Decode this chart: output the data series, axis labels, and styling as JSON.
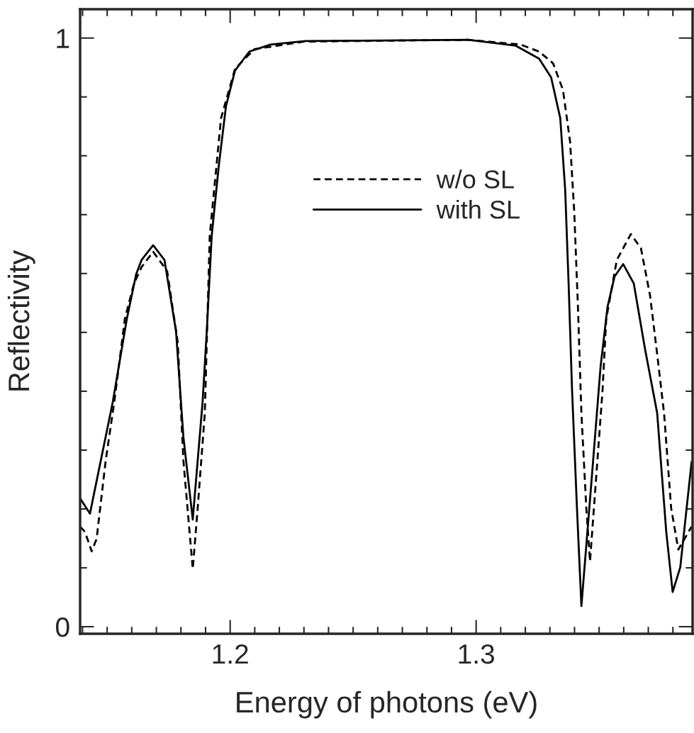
{
  "chart_data": {
    "type": "line",
    "xlabel": "Energy of photons (eV)",
    "ylabel": "Reflectivity",
    "xlim": [
      1.139,
      1.388
    ],
    "ylim": [
      -0.012,
      1.049
    ],
    "xticks": [
      {
        "value": 1.14,
        "label": null
      },
      {
        "value": 1.15,
        "label": null
      },
      {
        "value": 1.16,
        "label": null
      },
      {
        "value": 1.17,
        "label": null
      },
      {
        "value": 1.18,
        "label": null
      },
      {
        "value": 1.19,
        "label": null
      },
      1.2,
      {
        "value": 1.21,
        "label": null
      },
      {
        "value": 1.22,
        "label": null
      },
      {
        "value": 1.23,
        "label": null
      },
      {
        "value": 1.24,
        "label": null
      },
      {
        "value": 1.25,
        "label": null
      },
      {
        "value": 1.26,
        "label": null
      },
      {
        "value": 1.27,
        "label": null
      },
      {
        "value": 1.28,
        "label": null
      },
      {
        "value": 1.29,
        "label": null
      },
      1.3,
      {
        "value": 1.31,
        "label": null
      },
      {
        "value": 1.32,
        "label": null
      },
      {
        "value": 1.33,
        "label": null
      },
      {
        "value": 1.34,
        "label": null
      },
      {
        "value": 1.35,
        "label": null
      },
      {
        "value": 1.36,
        "label": null
      },
      {
        "value": 1.37,
        "label": null
      },
      {
        "value": 1.38,
        "label": null
      }
    ],
    "yticks": [
      0,
      {
        "value": 0.1,
        "label": null
      },
      {
        "value": 0.2,
        "label": null
      },
      {
        "value": 0.3,
        "label": null
      },
      {
        "value": 0.4,
        "label": null
      },
      {
        "value": 0.5,
        "label": null
      },
      {
        "value": 0.6,
        "label": null
      },
      {
        "value": 0.7,
        "label": null
      },
      {
        "value": 0.8,
        "label": null
      },
      {
        "value": 0.9,
        "label": null
      },
      1
    ],
    "grid": false,
    "legend": "top",
    "marker": "none",
    "series": [
      {
        "name": "w/o SL",
        "color": "#000000",
        "line_style": "dashed",
        "x": [
          1.139,
          1.141,
          1.1437,
          1.1457,
          1.1494,
          1.1529,
          1.1572,
          1.1609,
          1.164,
          1.1687,
          1.1744,
          1.1787,
          1.181,
          1.1848,
          1.1868,
          1.1897,
          1.1917,
          1.1963,
          1.202,
          1.2098,
          1.23,
          1.2968,
          1.3181,
          1.3256,
          1.3313,
          1.3353,
          1.3382,
          1.3399,
          1.3414,
          1.3428,
          1.3448,
          1.3463,
          1.3486,
          1.3514,
          1.3529,
          1.3572,
          1.3629,
          1.367,
          1.3707,
          1.3736,
          1.3764,
          1.3793,
          1.3822,
          1.3876
        ],
        "values": [
          0.17,
          0.161,
          0.128,
          0.149,
          0.282,
          0.382,
          0.523,
          0.583,
          0.611,
          0.637,
          0.604,
          0.483,
          0.282,
          0.098,
          0.201,
          0.363,
          0.664,
          0.864,
          0.948,
          0.981,
          0.994,
          0.997,
          0.989,
          0.977,
          0.957,
          0.912,
          0.824,
          0.704,
          0.543,
          0.363,
          0.201,
          0.111,
          0.242,
          0.402,
          0.523,
          0.623,
          0.667,
          0.643,
          0.563,
          0.463,
          0.363,
          0.201,
          0.131,
          0.17
        ]
      },
      {
        "name": "with SL",
        "color": "#000000",
        "line_style": "solid",
        "x": [
          1.139,
          1.143,
          1.1523,
          1.158,
          1.1618,
          1.164,
          1.1687,
          1.1733,
          1.178,
          1.181,
          1.1848,
          1.1888,
          1.1905,
          1.1925,
          1.1954,
          1.1983,
          1.202,
          1.2078,
          1.2164,
          1.2307,
          1.2968,
          1.3161,
          1.3256,
          1.3305,
          1.3342,
          1.3362,
          1.3376,
          1.339,
          1.341,
          1.3428,
          1.3468,
          1.3506,
          1.3534,
          1.3563,
          1.3598,
          1.3641,
          1.3687,
          1.3736,
          1.3773,
          1.3799,
          1.383,
          1.3876
        ],
        "values": [
          0.218,
          0.192,
          0.382,
          0.523,
          0.599,
          0.623,
          0.648,
          0.623,
          0.502,
          0.322,
          0.182,
          0.382,
          0.502,
          0.664,
          0.784,
          0.884,
          0.945,
          0.977,
          0.989,
          0.995,
          0.997,
          0.987,
          0.965,
          0.933,
          0.864,
          0.743,
          0.583,
          0.402,
          0.201,
          0.035,
          0.242,
          0.442,
          0.543,
          0.595,
          0.616,
          0.583,
          0.471,
          0.363,
          0.161,
          0.059,
          0.101,
          0.28
        ]
      }
    ]
  }
}
